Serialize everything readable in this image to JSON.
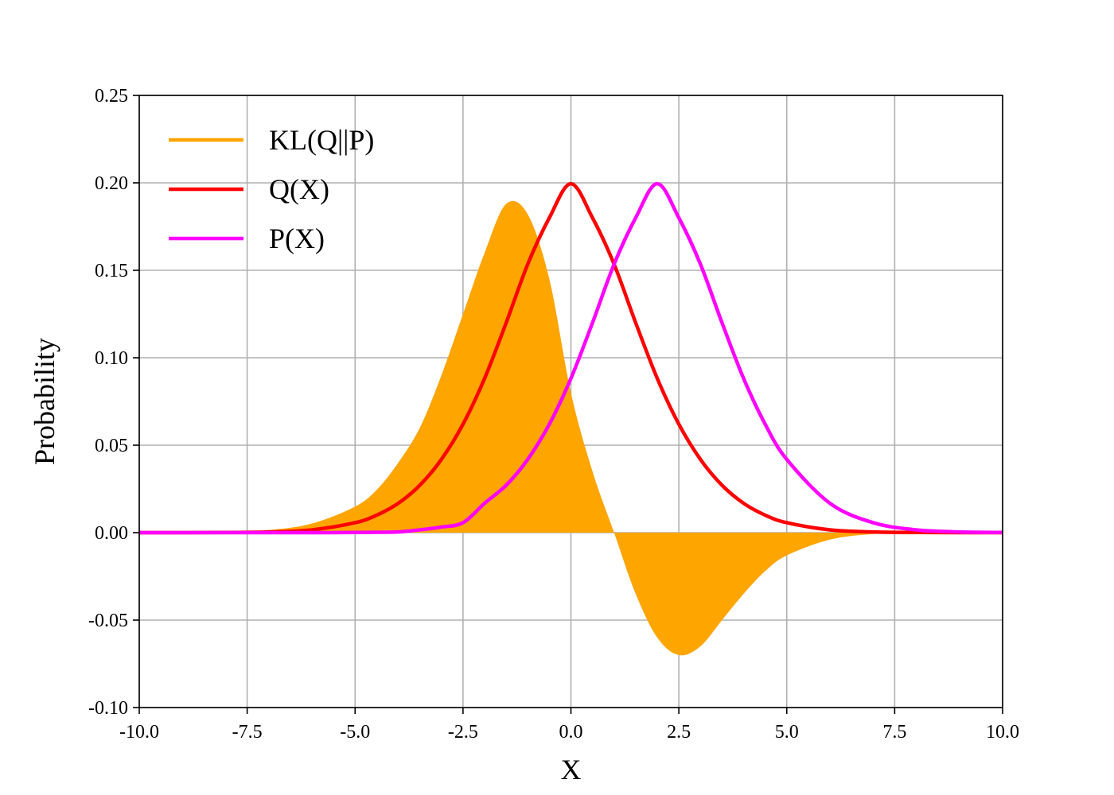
{
  "chart_data": {
    "type": "line",
    "title": "",
    "xlabel": "X",
    "ylabel": "Probability",
    "xlim": [
      -10,
      10
    ],
    "ylim": [
      -0.1,
      0.25
    ],
    "x_ticks": [
      -10,
      -7.5,
      -5,
      -2.5,
      0,
      2.5,
      5,
      7.5,
      10
    ],
    "x_tick_labels": [
      "-10.0",
      "-7.5",
      "-5.0",
      "-2.5",
      "0.0",
      "2.5",
      "5.0",
      "7.5",
      "10.0"
    ],
    "y_ticks": [
      -0.1,
      -0.05,
      0,
      0.05,
      0.1,
      0.15,
      0.2,
      0.25
    ],
    "y_tick_labels": [
      "-0.10",
      "-0.05",
      "0.00",
      "0.05",
      "0.10",
      "0.15",
      "0.20",
      "0.25"
    ],
    "grid": true,
    "legend_position": "top-left",
    "x": [
      -10,
      -9,
      -8,
      -7,
      -6,
      -5,
      -4.5,
      -4,
      -3.5,
      -3,
      -2.5,
      -2,
      -1.5,
      -1,
      -0.5,
      0,
      0.5,
      1,
      1.5,
      2,
      2.5,
      3,
      3.5,
      4,
      4.5,
      5,
      6,
      7,
      8,
      9,
      10
    ],
    "series": [
      {
        "name": "KL(Q||P)",
        "kind": "filled area",
        "color": "#FFA500",
        "values": [
          0.0,
          0.0,
          0.0004,
          0.0015,
          0.0052,
          0.0149,
          0.0245,
          0.04,
          0.06,
          0.09,
          0.125,
          0.16,
          0.188,
          0.182,
          0.145,
          0.08,
          0.035,
          0.0,
          -0.035,
          -0.06,
          -0.07,
          -0.065,
          -0.05,
          -0.035,
          -0.022,
          -0.013,
          -0.004,
          -0.0008,
          -0.0001,
          0.0,
          0.0
        ]
      },
      {
        "name": "Q(X)",
        "kind": "line",
        "color": "#FF0000",
        "values": [
          0.0,
          0.0,
          0.0001,
          0.0004,
          0.0016,
          0.0057,
          0.01,
          0.0168,
          0.0271,
          0.0419,
          0.062,
          0.0882,
          0.12,
          0.1535,
          0.18,
          0.1995,
          0.18,
          0.1535,
          0.12,
          0.0882,
          0.062,
          0.0419,
          0.0271,
          0.0168,
          0.01,
          0.0057,
          0.0016,
          0.0004,
          0.0001,
          0.0,
          0.0
        ]
      },
      {
        "name": "P(X)",
        "kind": "line",
        "color": "#FF00FF",
        "values": [
          0.0,
          0.0,
          0.0,
          0.0,
          0.0,
          0.0001,
          0.0002,
          0.0004,
          0.0016,
          0.0032,
          0.0057,
          0.0168,
          0.0271,
          0.0419,
          0.062,
          0.0882,
          0.12,
          0.1535,
          0.18,
          0.1995,
          0.18,
          0.1535,
          0.12,
          0.0882,
          0.062,
          0.0419,
          0.0168,
          0.0057,
          0.0016,
          0.0004,
          0.0001
        ]
      }
    ]
  }
}
